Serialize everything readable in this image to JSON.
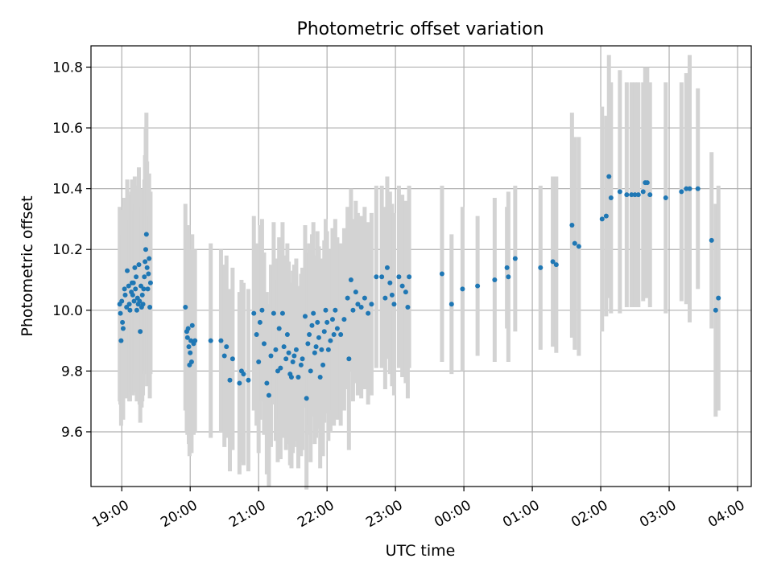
{
  "chart_data": {
    "type": "scatter",
    "title": "Photometric offset variation",
    "xlabel": "UTC time",
    "ylabel": "Photometric offset",
    "x_unit": "hours since 19:00 UTC",
    "xlim": [
      -0.45,
      9.2
    ],
    "ylim": [
      9.42,
      10.87
    ],
    "x_ticks": [
      {
        "label": "19:00",
        "value": 0
      },
      {
        "label": "20:00",
        "value": 1
      },
      {
        "label": "21:00",
        "value": 2
      },
      {
        "label": "22:00",
        "value": 3
      },
      {
        "label": "23:00",
        "value": 4
      },
      {
        "label": "00:00",
        "value": 5
      },
      {
        "label": "01:00",
        "value": 6
      },
      {
        "label": "02:00",
        "value": 7
      },
      {
        "label": "03:00",
        "value": 8
      },
      {
        "label": "04:00",
        "value": 9
      }
    ],
    "y_ticks": [
      {
        "label": "9.6",
        "value": 9.6
      },
      {
        "label": "9.8",
        "value": 9.8
      },
      {
        "label": "10.0",
        "value": 10.0
      },
      {
        "label": "10.2",
        "value": 10.2
      },
      {
        "label": "10.4",
        "value": 10.4
      },
      {
        "label": "10.6",
        "value": 10.6
      },
      {
        "label": "10.8",
        "value": 10.8
      }
    ],
    "grid": true,
    "legend": "none",
    "point_color": "#1f77b4",
    "errorbar_color": "#d3d3d3",
    "points": [
      [
        -0.03,
        10.02,
        0.32
      ],
      [
        -0.02,
        9.99,
        0.3
      ],
      [
        -0.01,
        9.9,
        0.28
      ],
      [
        0.0,
        10.03,
        0.3
      ],
      [
        0.01,
        9.96,
        0.29
      ],
      [
        0.02,
        9.94,
        0.3
      ],
      [
        0.04,
        10.07,
        0.3
      ],
      [
        0.05,
        10.05,
        0.28
      ],
      [
        0.07,
        10.01,
        0.3
      ],
      [
        0.08,
        10.13,
        0.3
      ],
      [
        0.1,
        10.08,
        0.3
      ],
      [
        0.11,
        10.02,
        0.32
      ],
      [
        0.12,
        10.0,
        0.3
      ],
      [
        0.14,
        10.06,
        0.33
      ],
      [
        0.15,
        10.09,
        0.34
      ],
      [
        0.16,
        10.05,
        0.33
      ],
      [
        0.17,
        10.09,
        0.3
      ],
      [
        0.18,
        10.03,
        0.3
      ],
      [
        0.19,
        10.14,
        0.3
      ],
      [
        0.2,
        10.07,
        0.28
      ],
      [
        0.21,
        10.11,
        0.3
      ],
      [
        0.22,
        10.0,
        0.3
      ],
      [
        0.23,
        10.04,
        0.3
      ],
      [
        0.24,
        10.02,
        0.3
      ],
      [
        0.25,
        10.15,
        0.32
      ],
      [
        0.26,
        10.03,
        0.34
      ],
      [
        0.27,
        9.93,
        0.3
      ],
      [
        0.28,
        10.08,
        0.3
      ],
      [
        0.29,
        10.01,
        0.33
      ],
      [
        0.3,
        10.05,
        0.35
      ],
      [
        0.31,
        10.02,
        0.3
      ],
      [
        0.32,
        10.07,
        0.32
      ],
      [
        0.33,
        10.11,
        0.32
      ],
      [
        0.34,
        10.16,
        0.35
      ],
      [
        0.35,
        10.2,
        0.4
      ],
      [
        0.36,
        10.25,
        0.4
      ],
      [
        0.37,
        10.14,
        0.35
      ],
      [
        0.38,
        10.07,
        0.32
      ],
      [
        0.39,
        10.12,
        0.3
      ],
      [
        0.4,
        10.17,
        0.28
      ],
      [
        0.41,
        10.01,
        0.3
      ],
      [
        0.42,
        10.09,
        0.3
      ],
      [
        0.93,
        10.01,
        0.34
      ],
      [
        0.95,
        9.93,
        0.33
      ],
      [
        0.96,
        9.91,
        0.32
      ],
      [
        0.97,
        9.94,
        0.34
      ],
      [
        0.98,
        9.88,
        0.32
      ],
      [
        0.99,
        9.82,
        0.3
      ],
      [
        1.0,
        9.86,
        0.3
      ],
      [
        1.01,
        9.9,
        0.3
      ],
      [
        1.02,
        9.83,
        0.3
      ],
      [
        1.03,
        9.95,
        0.3
      ],
      [
        1.05,
        9.89,
        0.3
      ],
      [
        1.07,
        9.9,
        0.3
      ],
      [
        1.3,
        9.9,
        0.32
      ],
      [
        1.45,
        9.9,
        0.3
      ],
      [
        1.5,
        9.85,
        0.3
      ],
      [
        1.53,
        9.88,
        0.3
      ],
      [
        1.58,
        9.77,
        0.3
      ],
      [
        1.62,
        9.84,
        0.3
      ],
      [
        1.72,
        9.76,
        0.3
      ],
      [
        1.75,
        9.8,
        0.3
      ],
      [
        1.78,
        9.79,
        0.3
      ],
      [
        1.85,
        9.77,
        0.3
      ],
      [
        1.93,
        9.99,
        0.32
      ],
      [
        1.97,
        9.92,
        0.3
      ],
      [
        2.0,
        9.83,
        0.3
      ],
      [
        2.02,
        9.96,
        0.32
      ],
      [
        2.05,
        10.0,
        0.3
      ],
      [
        2.08,
        9.89,
        0.3
      ],
      [
        2.12,
        9.76,
        0.3
      ],
      [
        2.15,
        9.72,
        0.3
      ],
      [
        2.18,
        9.85,
        0.3
      ],
      [
        2.22,
        9.99,
        0.3
      ],
      [
        2.25,
        9.87,
        0.3
      ],
      [
        2.28,
        9.8,
        0.3
      ],
      [
        2.3,
        9.94,
        0.3
      ],
      [
        2.32,
        9.81,
        0.3
      ],
      [
        2.35,
        9.99,
        0.3
      ],
      [
        2.37,
        9.88,
        0.3
      ],
      [
        2.4,
        9.84,
        0.3
      ],
      [
        2.42,
        9.92,
        0.3
      ],
      [
        2.44,
        9.86,
        0.3
      ],
      [
        2.46,
        9.79,
        0.3
      ],
      [
        2.48,
        9.78,
        0.3
      ],
      [
        2.5,
        9.83,
        0.3
      ],
      [
        2.52,
        9.85,
        0.3
      ],
      [
        2.55,
        9.87,
        0.3
      ],
      [
        2.58,
        9.78,
        0.3
      ],
      [
        2.62,
        9.82,
        0.3
      ],
      [
        2.64,
        9.84,
        0.3
      ],
      [
        2.68,
        9.98,
        0.3
      ],
      [
        2.7,
        9.71,
        0.3
      ],
      [
        2.72,
        9.89,
        0.3
      ],
      [
        2.74,
        9.92,
        0.3
      ],
      [
        2.76,
        9.8,
        0.3
      ],
      [
        2.78,
        9.95,
        0.3
      ],
      [
        2.8,
        9.99,
        0.3
      ],
      [
        2.82,
        9.86,
        0.3
      ],
      [
        2.84,
        9.88,
        0.3
      ],
      [
        2.86,
        9.96,
        0.3
      ],
      [
        2.88,
        9.91,
        0.3
      ],
      [
        2.9,
        9.78,
        0.3
      ],
      [
        2.92,
        9.87,
        0.3
      ],
      [
        2.94,
        9.82,
        0.3
      ],
      [
        2.96,
        9.93,
        0.3
      ],
      [
        2.98,
        10.0,
        0.3
      ],
      [
        3.0,
        9.96,
        0.3
      ],
      [
        3.02,
        9.87,
        0.3
      ],
      [
        3.05,
        9.9,
        0.3
      ],
      [
        3.08,
        9.97,
        0.3
      ],
      [
        3.1,
        9.92,
        0.3
      ],
      [
        3.12,
        10.0,
        0.3
      ],
      [
        3.15,
        9.94,
        0.3
      ],
      [
        3.2,
        9.92,
        0.3
      ],
      [
        3.25,
        9.97,
        0.3
      ],
      [
        3.3,
        10.04,
        0.3
      ],
      [
        3.32,
        9.84,
        0.3
      ],
      [
        3.35,
        10.1,
        0.3
      ],
      [
        3.38,
        10.0,
        0.3
      ],
      [
        3.42,
        10.06,
        0.3
      ],
      [
        3.45,
        10.02,
        0.3
      ],
      [
        3.5,
        10.01,
        0.3
      ],
      [
        3.55,
        10.04,
        0.3
      ],
      [
        3.6,
        9.99,
        0.3
      ],
      [
        3.65,
        10.02,
        0.3
      ],
      [
        3.72,
        10.11,
        0.3
      ],
      [
        3.8,
        10.11,
        0.3
      ],
      [
        3.85,
        10.04,
        0.3
      ],
      [
        3.88,
        10.14,
        0.3
      ],
      [
        3.92,
        10.09,
        0.3
      ],
      [
        3.95,
        10.05,
        0.3
      ],
      [
        3.98,
        10.02,
        0.3
      ],
      [
        4.05,
        10.11,
        0.3
      ],
      [
        4.1,
        10.08,
        0.3
      ],
      [
        4.15,
        10.06,
        0.3
      ],
      [
        4.18,
        10.01,
        0.3
      ],
      [
        4.2,
        10.11,
        0.3
      ],
      [
        4.68,
        10.12,
        0.29
      ],
      [
        4.82,
        10.02,
        0.23
      ],
      [
        4.98,
        10.07,
        0.27
      ],
      [
        5.2,
        10.08,
        0.23
      ],
      [
        5.45,
        10.1,
        0.27
      ],
      [
        5.63,
        10.14,
        0.2
      ],
      [
        5.65,
        10.11,
        0.28
      ],
      [
        5.75,
        10.17,
        0.24
      ],
      [
        6.12,
        10.14,
        0.27
      ],
      [
        6.3,
        10.16,
        0.28
      ],
      [
        6.35,
        10.15,
        0.29
      ],
      [
        6.58,
        10.28,
        0.37
      ],
      [
        6.62,
        10.22,
        0.35
      ],
      [
        6.68,
        10.21,
        0.36
      ],
      [
        7.02,
        10.3,
        0.37
      ],
      [
        7.08,
        10.31,
        0.33
      ],
      [
        7.12,
        10.44,
        0.4
      ],
      [
        7.15,
        10.37,
        0.38
      ],
      [
        7.28,
        10.39,
        0.4
      ],
      [
        7.38,
        10.38,
        0.37
      ],
      [
        7.45,
        10.38,
        0.37
      ],
      [
        7.5,
        10.38,
        0.37
      ],
      [
        7.55,
        10.38,
        0.37
      ],
      [
        7.62,
        10.39,
        0.36
      ],
      [
        7.65,
        10.42,
        0.38
      ],
      [
        7.68,
        10.42,
        0.38
      ],
      [
        7.72,
        10.38,
        0.37
      ],
      [
        7.95,
        10.37,
        0.38
      ],
      [
        8.18,
        10.39,
        0.36
      ],
      [
        8.25,
        10.4,
        0.38
      ],
      [
        8.3,
        10.4,
        0.44
      ],
      [
        8.42,
        10.4,
        0.33
      ],
      [
        8.62,
        10.23,
        0.29
      ],
      [
        8.68,
        10.0,
        0.35
      ],
      [
        8.72,
        10.04,
        0.37
      ]
    ]
  }
}
